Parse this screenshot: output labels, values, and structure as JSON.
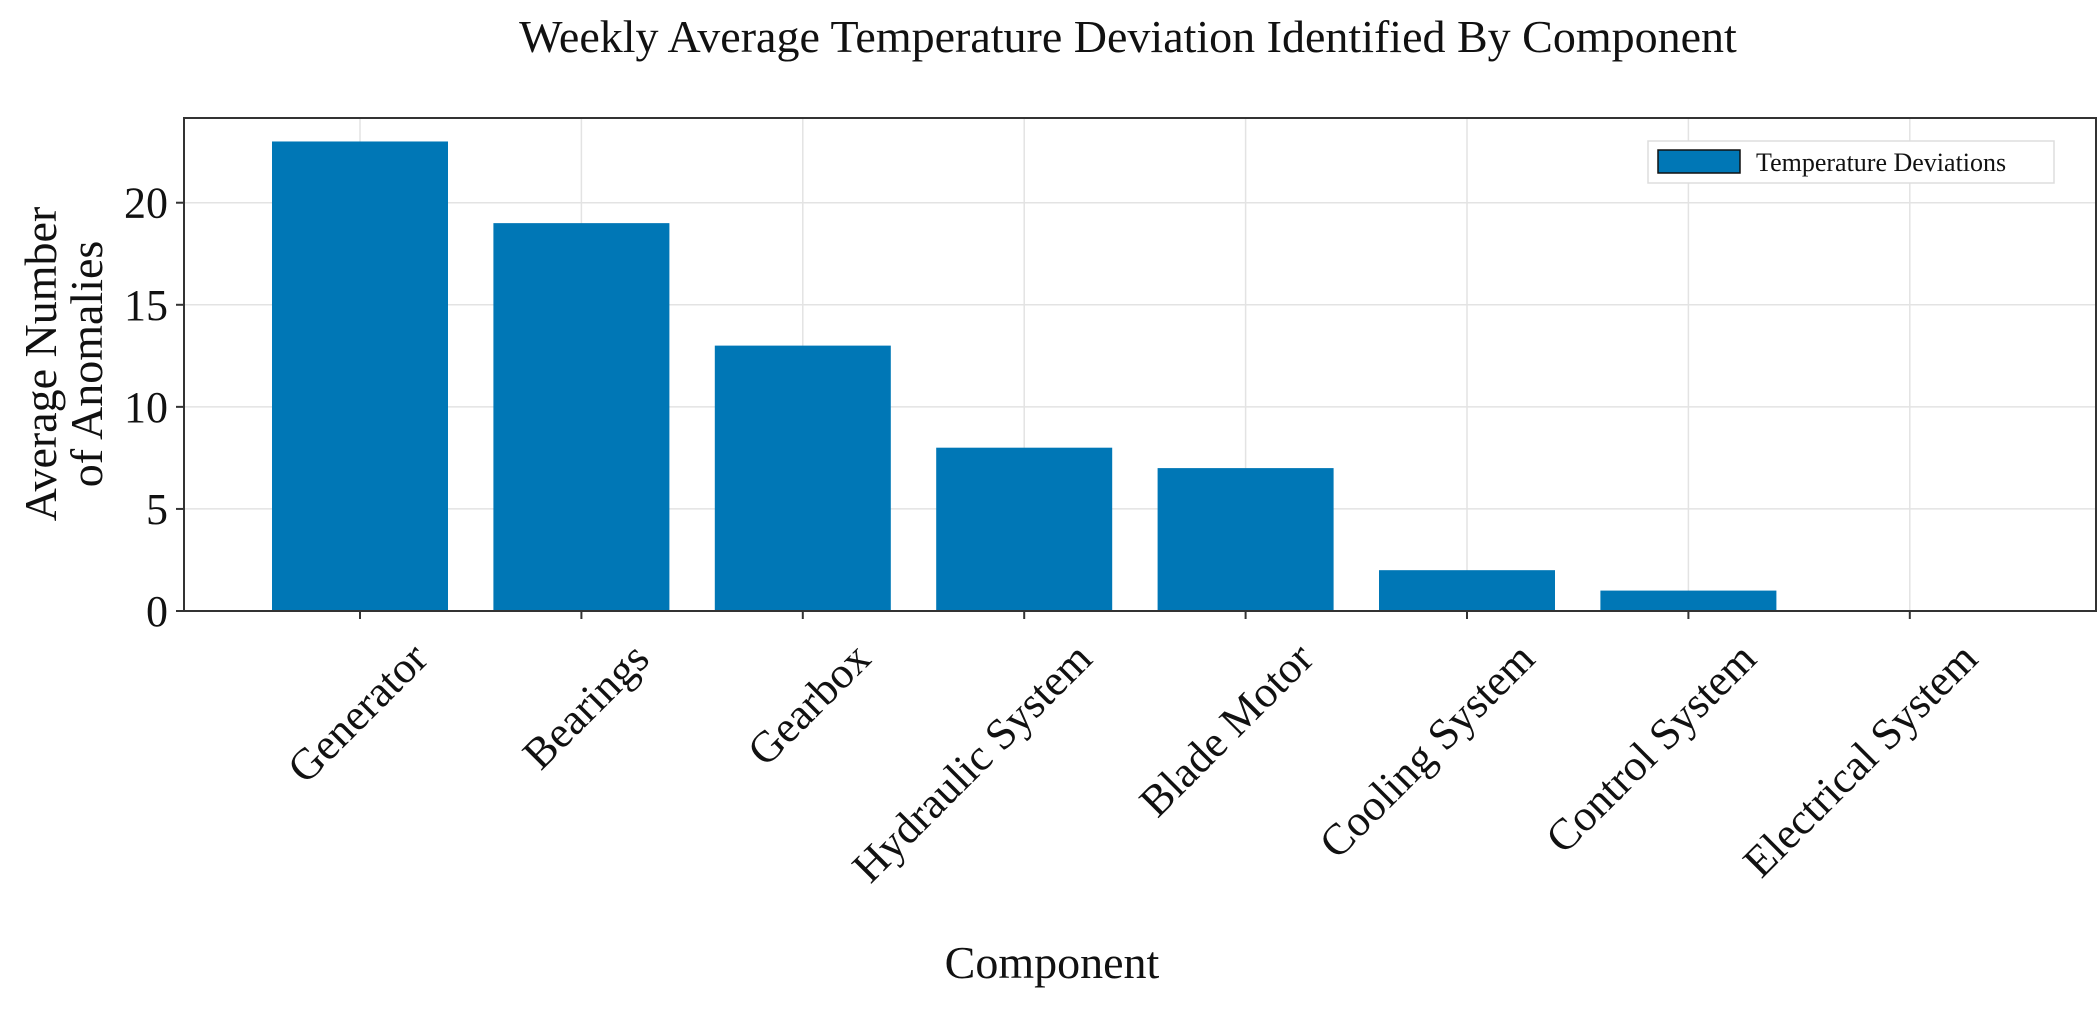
{
  "chart_data": {
    "type": "bar",
    "title": "Weekly Average Temperature Deviation Identified By Component",
    "xlabel": "Component",
    "ylabel": [
      "Average Number",
      "of Anomalies"
    ],
    "categories": [
      "Generator",
      "Bearings",
      "Gearbox",
      "Hydraulic System",
      "Blade Motor",
      "Cooling System",
      "Control System",
      "Electrical System"
    ],
    "series": [
      {
        "name": "Temperature Deviations",
        "values": [
          23,
          19,
          13,
          8,
          7,
          2,
          1,
          0
        ],
        "color": "#0077b6"
      }
    ],
    "ylim": [
      0,
      24.15
    ],
    "yticks": [
      0,
      5,
      10,
      15,
      20
    ],
    "grid": true,
    "legend_position": "top-right"
  }
}
